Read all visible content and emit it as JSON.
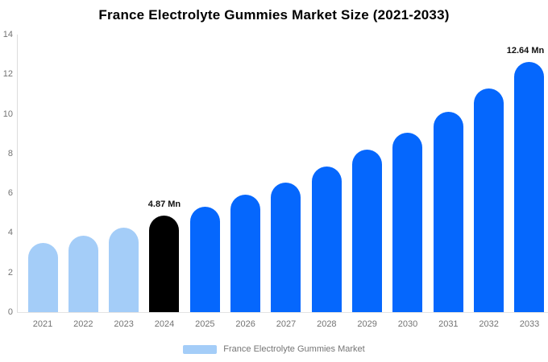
{
  "title": "France Electrolyte Gummies Market Size (2021-2033)",
  "colors": {
    "primary_blue": "#0567fd",
    "light_blue": "#a4cdf8",
    "highlight_black": "#000000",
    "axis_line": "#dcdcdc",
    "tick_text": "#737373"
  },
  "legend": {
    "label": "France Electrolyte Gummies Market",
    "swatch_color": "#a4cdf8"
  },
  "chart_data": {
    "type": "bar",
    "title": "France Electrolyte Gummies Market Size (2021-2033)",
    "categories": [
      "2021",
      "2022",
      "2023",
      "2024",
      "2025",
      "2026",
      "2027",
      "2028",
      "2029",
      "2030",
      "2031",
      "2032",
      "2033"
    ],
    "values": [
      3.5,
      3.86,
      4.27,
      4.87,
      5.3,
      5.92,
      6.55,
      7.33,
      8.2,
      9.05,
      10.12,
      11.28,
      12.64
    ],
    "unit": "Mn",
    "bar_colors": [
      "#a4cdf8",
      "#a4cdf8",
      "#a4cdf8",
      "#000000",
      "#0567fd",
      "#0567fd",
      "#0567fd",
      "#0567fd",
      "#0567fd",
      "#0567fd",
      "#0567fd",
      "#0567fd",
      "#0567fd"
    ],
    "xlabel": "",
    "ylabel": "",
    "ylim": [
      0,
      14
    ],
    "yticks": [
      0,
      2,
      4,
      6,
      8,
      10,
      12,
      14
    ],
    "grid": false,
    "legend_position": "bottom",
    "annotations": [
      {
        "category": "2024",
        "text": "4.87 Mn"
      },
      {
        "category": "2033",
        "text": "12.64 Mn"
      }
    ]
  }
}
